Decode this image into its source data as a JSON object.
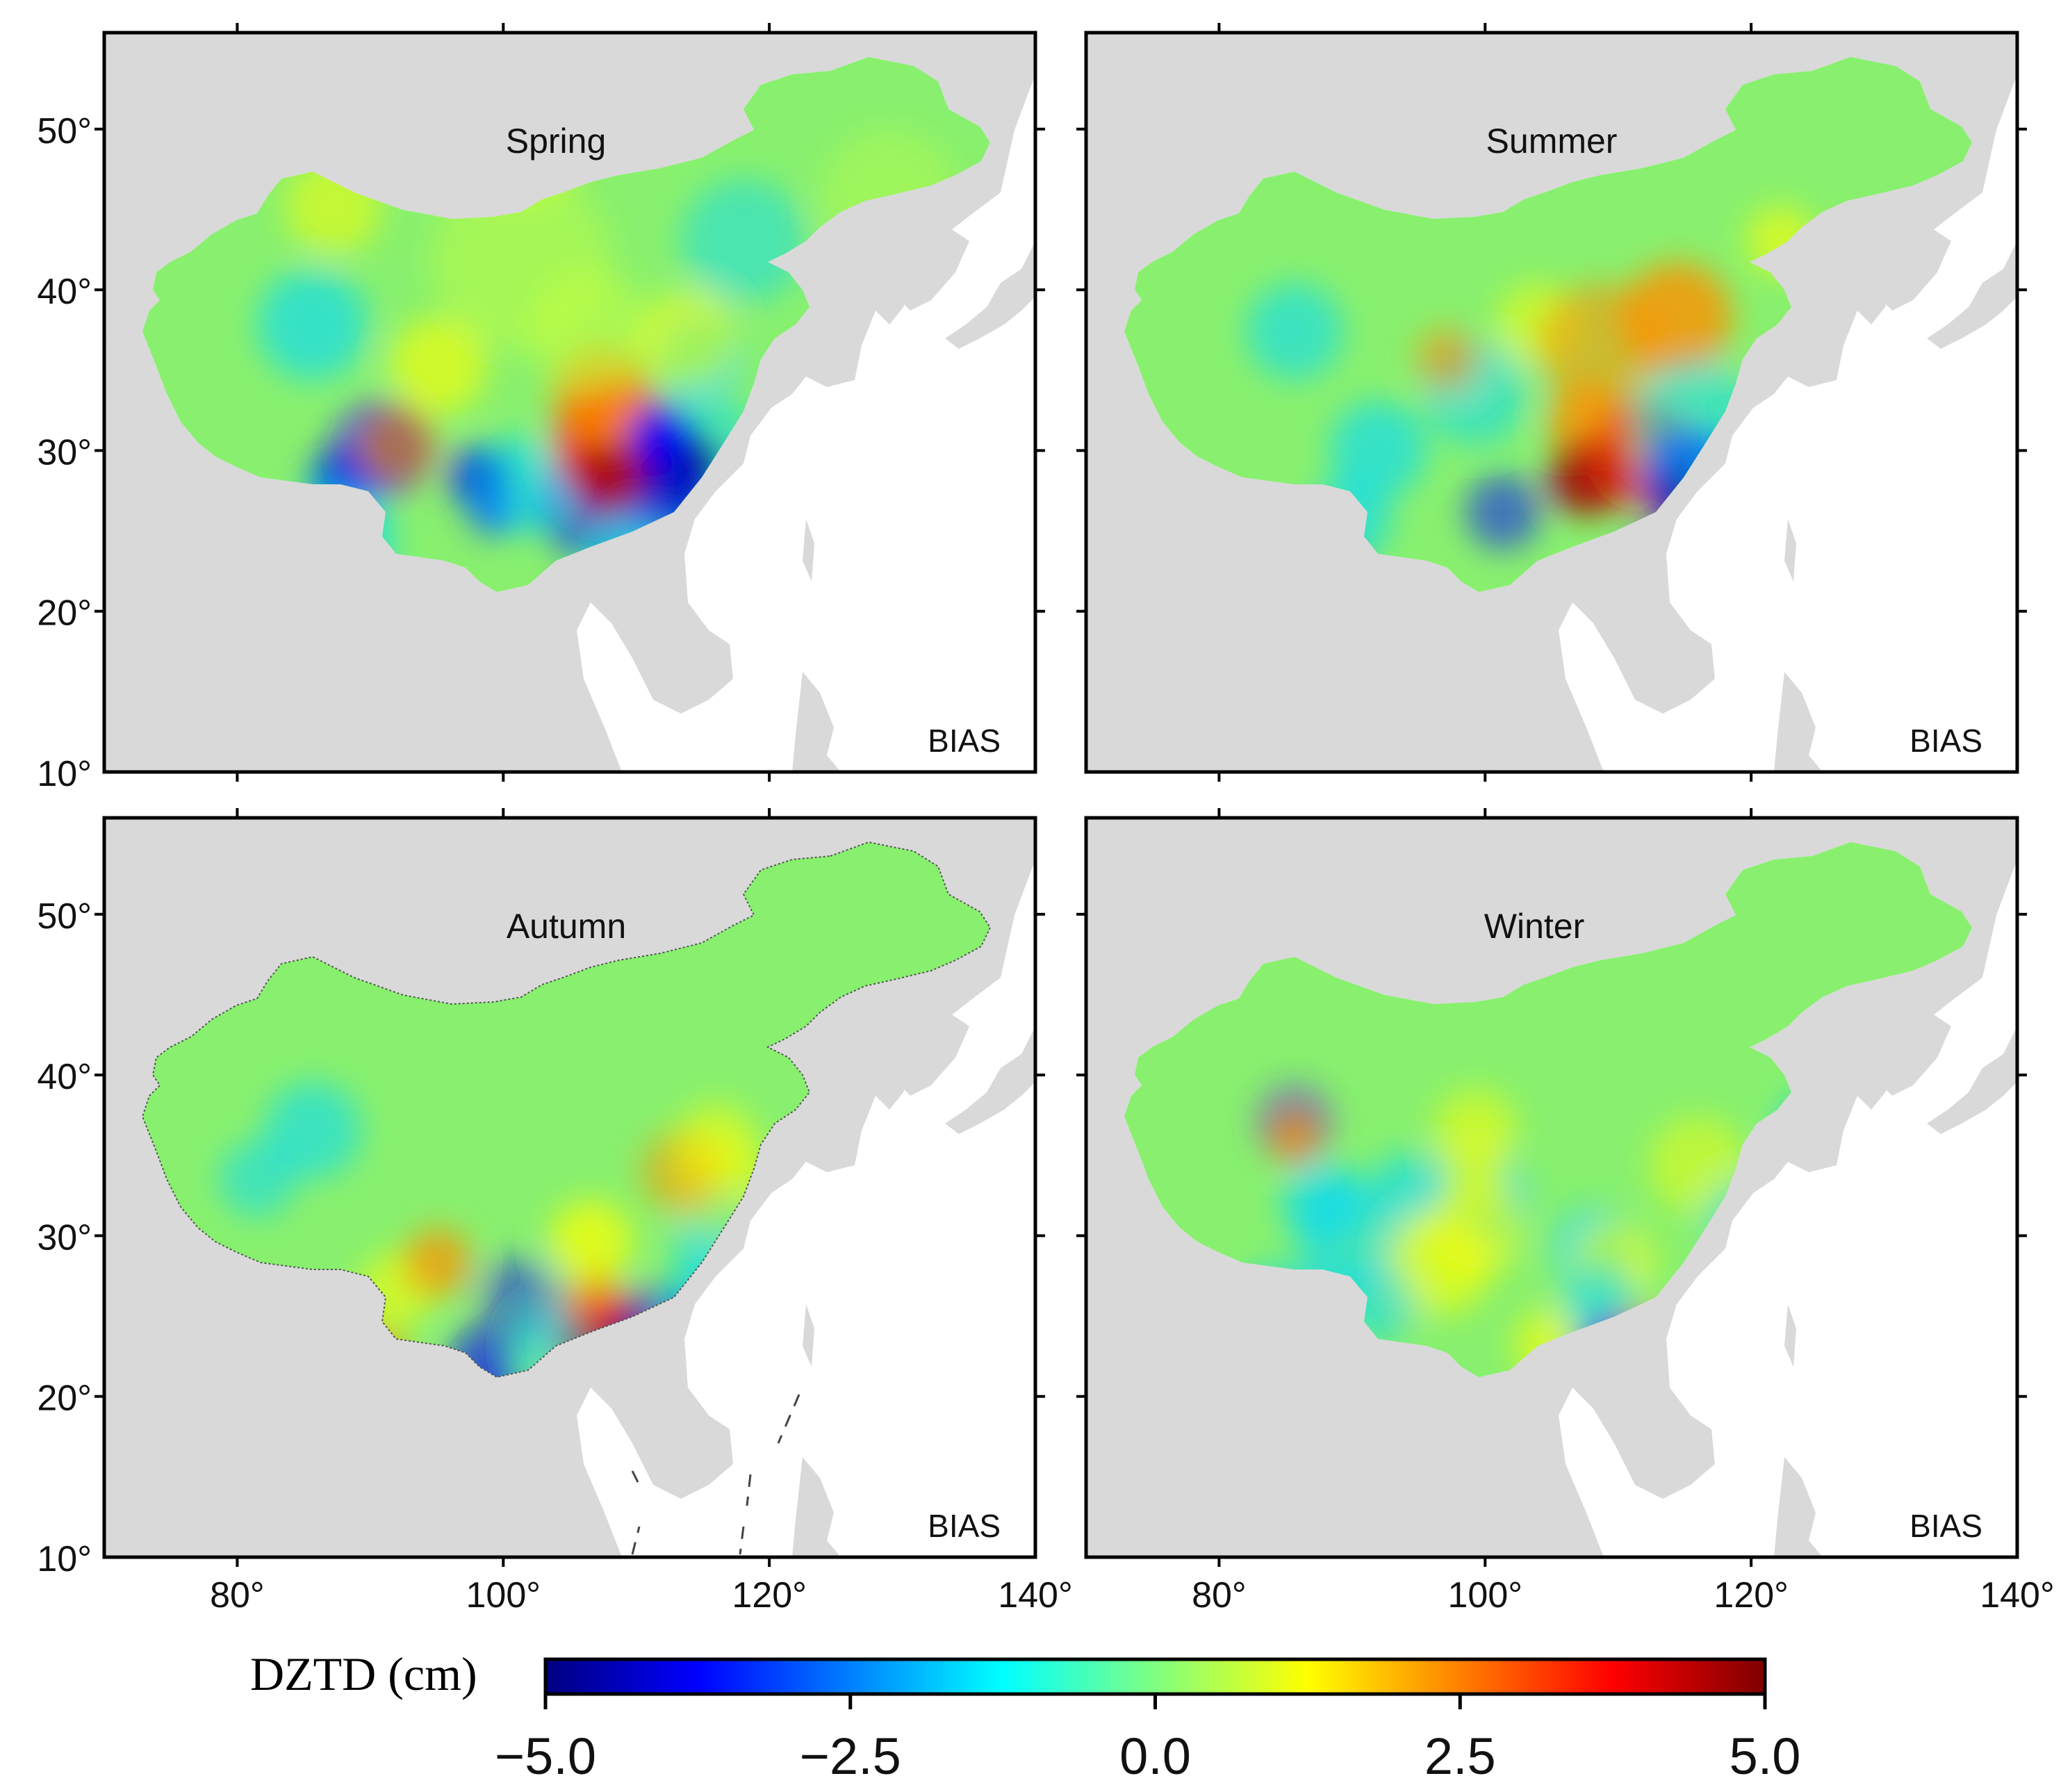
{
  "panels": [
    {
      "title": "Spring",
      "tag": "BIAS"
    },
    {
      "title": "Summer",
      "tag": "BIAS"
    },
    {
      "title": "Autumn",
      "tag": "BIAS"
    },
    {
      "title": "Winter",
      "tag": "BIAS"
    }
  ],
  "axes": {
    "lon_ticks": [
      "80°",
      "100°",
      "120°",
      "140°"
    ],
    "lat_ticks": [
      "50°",
      "40°",
      "30°",
      "20°",
      "10°"
    ]
  },
  "colorbar": {
    "label": "DZTD (cm)",
    "ticks": [
      "−5.0",
      "−2.5",
      "0.0",
      "2.5",
      "5.0"
    ],
    "stops": [
      "#00007f",
      "#0000ff",
      "#0080ff",
      "#00ffff",
      "#80ff80",
      "#ffff00",
      "#ff8000",
      "#ff0000",
      "#7f0000"
    ]
  },
  "colors": {
    "land": "#d9d9d9",
    "sea": "#ffffff",
    "frame": "#000000"
  }
}
